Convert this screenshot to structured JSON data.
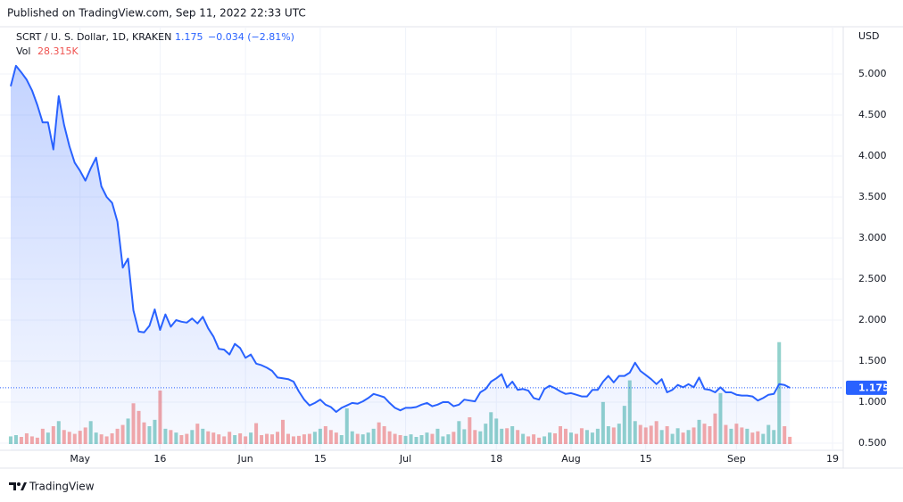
{
  "header": {
    "published": "Published on TradingView.com, Sep 11, 2022 22:33 UTC",
    "brand": "TradingView"
  },
  "chart_data": {
    "type": "area",
    "title": "SCRT / U. S. Dollar, 1D, KRAKEN",
    "change_label": "−0.034 (−2.81%)",
    "y_unit": "USD",
    "vol_legend": {
      "label": "Vol",
      "value_label": "28.315K"
    },
    "x": [
      "2022-04-18",
      "2022-04-19",
      "2022-04-20",
      "2022-04-21",
      "2022-04-22",
      "2022-04-23",
      "2022-04-24",
      "2022-04-25",
      "2022-04-26",
      "2022-04-27",
      "2022-04-28",
      "2022-04-29",
      "2022-04-30",
      "2022-05-01",
      "2022-05-02",
      "2022-05-03",
      "2022-05-04",
      "2022-05-05",
      "2022-05-06",
      "2022-05-07",
      "2022-05-08",
      "2022-05-09",
      "2022-05-10",
      "2022-05-11",
      "2022-05-12",
      "2022-05-13",
      "2022-05-14",
      "2022-05-15",
      "2022-05-16",
      "2022-05-17",
      "2022-05-18",
      "2022-05-19",
      "2022-05-20",
      "2022-05-21",
      "2022-05-22",
      "2022-05-23",
      "2022-05-24",
      "2022-05-25",
      "2022-05-26",
      "2022-05-27",
      "2022-05-28",
      "2022-05-29",
      "2022-05-30",
      "2022-05-31",
      "2022-06-01",
      "2022-06-02",
      "2022-06-03",
      "2022-06-04",
      "2022-06-05",
      "2022-06-06",
      "2022-06-07",
      "2022-06-08",
      "2022-06-09",
      "2022-06-10",
      "2022-06-11",
      "2022-06-12",
      "2022-06-13",
      "2022-06-14",
      "2022-06-15",
      "2022-06-16",
      "2022-06-17",
      "2022-06-18",
      "2022-06-19",
      "2022-06-20",
      "2022-06-21",
      "2022-06-22",
      "2022-06-23",
      "2022-06-24",
      "2022-06-25",
      "2022-06-26",
      "2022-06-27",
      "2022-06-28",
      "2022-06-29",
      "2022-06-30",
      "2022-07-01",
      "2022-07-02",
      "2022-07-03",
      "2022-07-04",
      "2022-07-05",
      "2022-07-06",
      "2022-07-07",
      "2022-07-08",
      "2022-07-09",
      "2022-07-10",
      "2022-07-11",
      "2022-07-12",
      "2022-07-13",
      "2022-07-14",
      "2022-07-15",
      "2022-07-16",
      "2022-07-17",
      "2022-07-18",
      "2022-07-19",
      "2022-07-20",
      "2022-07-21",
      "2022-07-22",
      "2022-07-23",
      "2022-07-24",
      "2022-07-25",
      "2022-07-26",
      "2022-07-27",
      "2022-07-28",
      "2022-07-29",
      "2022-07-30",
      "2022-07-31",
      "2022-08-01",
      "2022-08-02",
      "2022-08-03",
      "2022-08-04",
      "2022-08-05",
      "2022-08-06",
      "2022-08-07",
      "2022-08-08",
      "2022-08-09",
      "2022-08-10",
      "2022-08-11",
      "2022-08-12",
      "2022-08-13",
      "2022-08-14",
      "2022-08-15",
      "2022-08-16",
      "2022-08-17",
      "2022-08-18",
      "2022-08-19",
      "2022-08-20",
      "2022-08-21",
      "2022-08-22",
      "2022-08-23",
      "2022-08-24",
      "2022-08-25",
      "2022-08-26",
      "2022-08-27",
      "2022-08-28",
      "2022-08-29",
      "2022-08-30",
      "2022-08-31",
      "2022-09-01",
      "2022-09-02",
      "2022-09-03",
      "2022-09-04",
      "2022-09-05",
      "2022-09-06",
      "2022-09-07",
      "2022-09-08",
      "2022-09-09",
      "2022-09-10",
      "2022-09-11"
    ],
    "series": [
      {
        "name": "SCRT / U. S. Dollar",
        "type": "area",
        "color": "#2962ff",
        "values": [
          4.85,
          5.1,
          5.02,
          4.93,
          4.8,
          4.62,
          4.41,
          4.41,
          4.08,
          4.73,
          4.38,
          4.12,
          3.92,
          3.82,
          3.7,
          3.85,
          3.98,
          3.63,
          3.5,
          3.43,
          3.2,
          2.64,
          2.75,
          2.12,
          1.86,
          1.85,
          1.93,
          2.13,
          1.88,
          2.07,
          1.92,
          2.0,
          1.98,
          1.97,
          2.02,
          1.96,
          2.04,
          1.9,
          1.8,
          1.65,
          1.64,
          1.58,
          1.71,
          1.66,
          1.54,
          1.58,
          1.47,
          1.45,
          1.42,
          1.38,
          1.3,
          1.29,
          1.28,
          1.25,
          1.13,
          1.03,
          0.96,
          0.99,
          1.03,
          0.97,
          0.94,
          0.88,
          0.93,
          0.96,
          0.99,
          0.98,
          1.01,
          1.05,
          1.1,
          1.08,
          1.06,
          0.99,
          0.93,
          0.9,
          0.93,
          0.93,
          0.94,
          0.97,
          0.99,
          0.95,
          0.97,
          1.0,
          1.0,
          0.95,
          0.97,
          1.03,
          1.02,
          1.01,
          1.12,
          1.16,
          1.25,
          1.29,
          1.34,
          1.18,
          1.25,
          1.15,
          1.16,
          1.14,
          1.05,
          1.03,
          1.16,
          1.2,
          1.17,
          1.13,
          1.1,
          1.11,
          1.09,
          1.07,
          1.07,
          1.15,
          1.15,
          1.25,
          1.32,
          1.24,
          1.32,
          1.32,
          1.36,
          1.48,
          1.38,
          1.33,
          1.28,
          1.22,
          1.28,
          1.12,
          1.15,
          1.21,
          1.18,
          1.22,
          1.18,
          1.3,
          1.16,
          1.15,
          1.12,
          1.18,
          1.12,
          1.12,
          1.09,
          1.08,
          1.08,
          1.07,
          1.02,
          1.05,
          1.09,
          1.1,
          1.22,
          1.21,
          1.175
        ]
      },
      {
        "name": "Vol",
        "type": "volume",
        "up_color": "#26a69a",
        "down_color": "#ef5350",
        "values": [
          30000,
          35000,
          28000,
          42000,
          30000,
          25000,
          60000,
          45000,
          70000,
          90000,
          55000,
          48000,
          40000,
          52000,
          65000,
          90000,
          45000,
          38000,
          30000,
          42000,
          60000,
          75000,
          100000,
          160000,
          130000,
          85000,
          70000,
          95000,
          210000,
          60000,
          55000,
          45000,
          35000,
          40000,
          55000,
          80000,
          60000,
          50000,
          45000,
          38000,
          30000,
          48000,
          35000,
          42000,
          30000,
          45000,
          82000,
          35000,
          40000,
          38000,
          48000,
          95000,
          40000,
          30000,
          32000,
          38000,
          40000,
          48000,
          60000,
          70000,
          55000,
          45000,
          35000,
          140000,
          50000,
          40000,
          38000,
          45000,
          60000,
          85000,
          70000,
          50000,
          40000,
          35000,
          32000,
          38000,
          28000,
          35000,
          45000,
          40000,
          60000,
          30000,
          38000,
          48000,
          90000,
          58000,
          105000,
          55000,
          50000,
          80000,
          125000,
          100000,
          60000,
          62000,
          70000,
          55000,
          40000,
          30000,
          38000,
          25000,
          30000,
          45000,
          42000,
          70000,
          60000,
          45000,
          40000,
          62000,
          55000,
          45000,
          60000,
          165000,
          70000,
          65000,
          80000,
          150000,
          250000,
          90000,
          75000,
          65000,
          72000,
          90000,
          55000,
          70000,
          40000,
          62000,
          45000,
          55000,
          65000,
          95000,
          80000,
          70000,
          120000,
          200000,
          75000,
          60000,
          80000,
          65000,
          60000,
          45000,
          50000,
          40000,
          75000,
          55000,
          400000,
          70000,
          28315
        ]
      }
    ],
    "xlim": [
      "2022-04-16",
      "2022-09-21"
    ],
    "xticks": [
      {
        "value": "2022-05-01",
        "label": "May"
      },
      {
        "value": "2022-05-16",
        "label": "16"
      },
      {
        "value": "2022-06-01",
        "label": "Jun"
      },
      {
        "value": "2022-06-15",
        "label": "15"
      },
      {
        "value": "2022-07-01",
        "label": "Jul"
      },
      {
        "value": "2022-07-18",
        "label": "18"
      },
      {
        "value": "2022-08-01",
        "label": "Aug"
      },
      {
        "value": "2022-08-15",
        "label": "15"
      },
      {
        "value": "2022-09-01",
        "label": "Sep"
      },
      {
        "value": "2022-09-19",
        "label": "19"
      }
    ],
    "ylim": [
      0.413,
      5.576
    ],
    "yticks": [
      {
        "value": 0.5,
        "label": "0.500"
      },
      {
        "value": 1,
        "label": "1.000"
      },
      {
        "value": 1.5,
        "label": "1.500"
      },
      {
        "value": 2,
        "label": "2.000"
      },
      {
        "value": 2.5,
        "label": "2.500"
      },
      {
        "value": 3,
        "label": "3.000"
      },
      {
        "value": 3.5,
        "label": "3.500"
      },
      {
        "value": 4,
        "label": "4.000"
      },
      {
        "value": 4.5,
        "label": "4.500"
      },
      {
        "value": 5,
        "label": "5.000"
      }
    ],
    "vol_ylim": [
      0,
      420000
    ],
    "grid": true
  }
}
